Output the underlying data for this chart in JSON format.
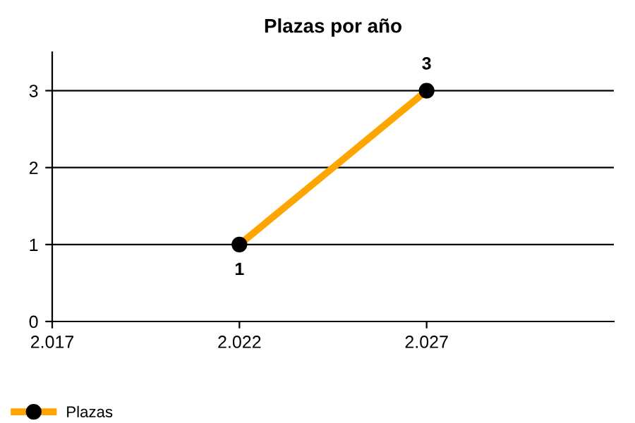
{
  "chart_data": {
    "type": "line",
    "title": "Plazas por año",
    "x": [
      2022,
      2027
    ],
    "series": [
      {
        "name": "Plazas",
        "color": "#ffa500",
        "values": [
          1,
          3
        ]
      }
    ],
    "xlim": [
      2017,
      2032
    ],
    "xticks": [
      {
        "value": 2017,
        "label": "2.017"
      },
      {
        "value": 2022,
        "label": "2.022"
      },
      {
        "value": 2027,
        "label": "2.027"
      }
    ],
    "ylim": [
      0,
      3.5
    ],
    "yticks": [
      0,
      1,
      2,
      3
    ],
    "grid": "y",
    "legend": "bottom left",
    "marker": "circle",
    "line_style": "solid",
    "data_labels": true
  }
}
